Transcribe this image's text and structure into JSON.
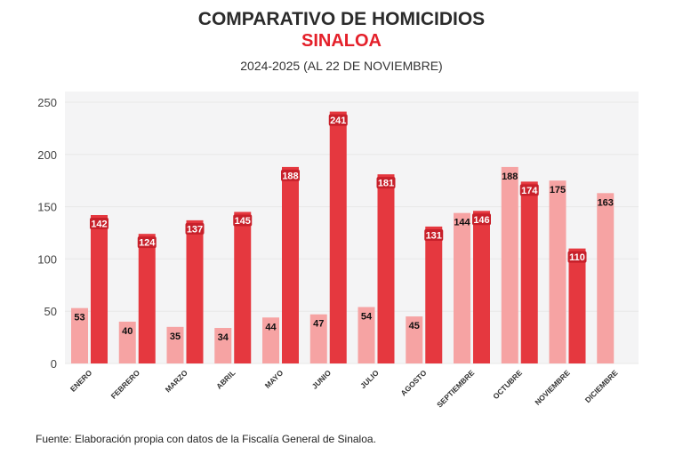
{
  "header": {
    "title": "COMPARATIVO DE HOMICIDIOS",
    "subtitle": "SINALOA",
    "period": "2024-2025 (AL 22 DE NOVIEMBRE)"
  },
  "footer": {
    "source": "Fuente: Elaboración propia con datos de la Fiscalía General de Sinaloa."
  },
  "chart_data": {
    "type": "bar",
    "title": "COMPARATIVO DE HOMICIDIOS",
    "categories": [
      "ENERO",
      "FEBRERO",
      "MARZO",
      "ABRIL",
      "MAYO",
      "JUNIO",
      "JULIO",
      "AGOSTO",
      "SEPTIEMBRE",
      "OCTUBRE",
      "NOVIEMBRE",
      "DICIEMBRE"
    ],
    "series": [
      {
        "values": [
          53,
          40,
          35,
          34,
          44,
          47,
          54,
          45,
          144,
          188,
          175,
          163
        ],
        "color": "#f6a3a3"
      },
      {
        "values": [
          142,
          124,
          137,
          145,
          188,
          241,
          181,
          131,
          146,
          174,
          110,
          null
        ],
        "color": "#e5383f"
      }
    ],
    "ylim": [
      0,
      250
    ],
    "yticks": [
      0,
      50,
      100,
      150,
      200,
      250
    ],
    "grid": true,
    "legend": "none",
    "label_bg_dark": "#c8202a"
  }
}
